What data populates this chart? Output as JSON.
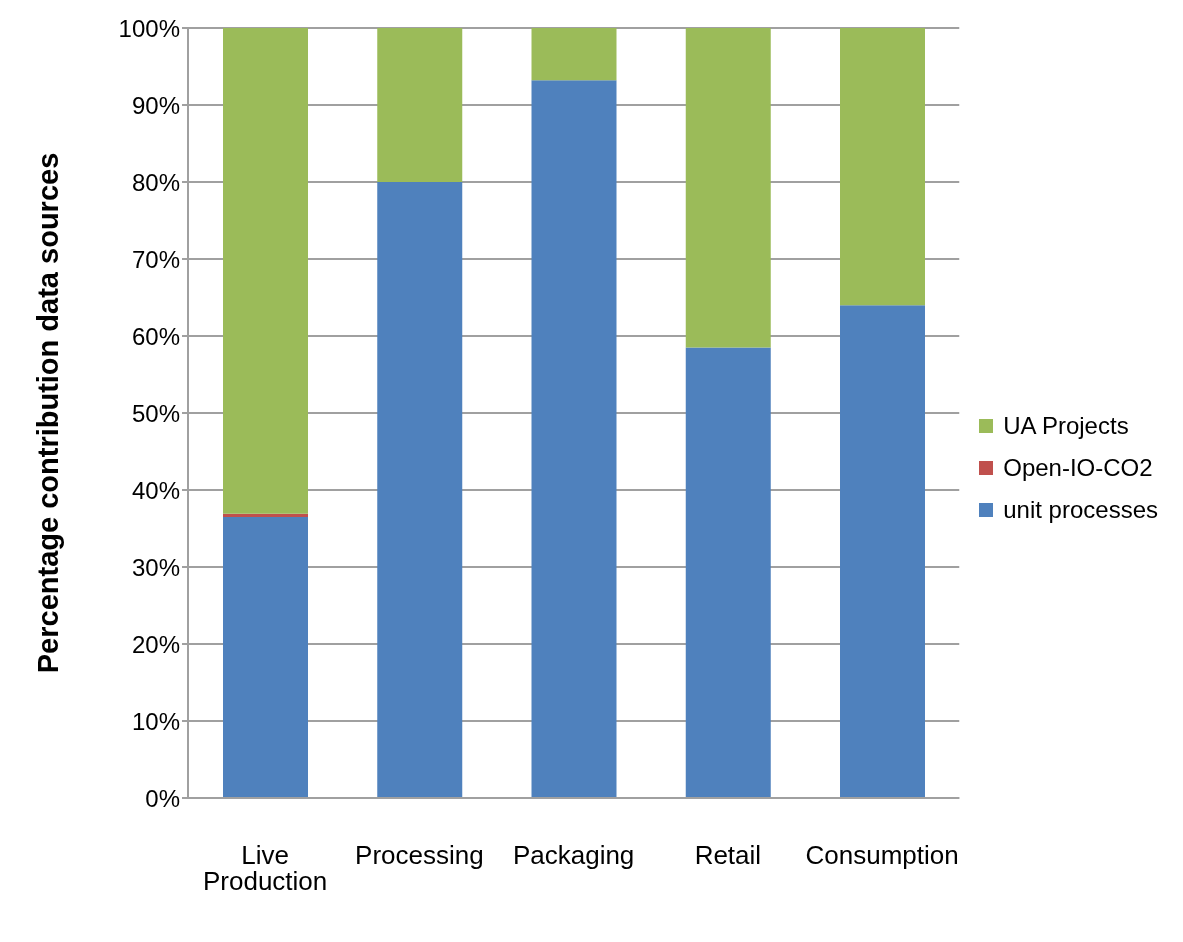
{
  "chart_data": {
    "type": "bar",
    "stacked": true,
    "ylabel": "Percentage contribution data sources",
    "categories": [
      "Live Production",
      "Processing",
      "Packaging",
      "Retail",
      "Consumption"
    ],
    "series": [
      {
        "name": "unit processes",
        "color": "#4f81bd",
        "values": [
          36.5,
          80,
          93.2,
          58.5,
          64
        ]
      },
      {
        "name": "Open-IO-CO2",
        "color": "#c0504d",
        "values": [
          0.4,
          0,
          0,
          0,
          0
        ]
      },
      {
        "name": "UA Projects",
        "color": "#9bbb59",
        "values": [
          63.1,
          20,
          6.8,
          41.5,
          36
        ]
      }
    ],
    "ylim": [
      0,
      100
    ],
    "yticks": [
      {
        "value": 0,
        "label": "0%"
      },
      {
        "value": 10,
        "label": "10%"
      },
      {
        "value": 20,
        "label": "20%"
      },
      {
        "value": 30,
        "label": "30%"
      },
      {
        "value": 40,
        "label": "40%"
      },
      {
        "value": 50,
        "label": "50%"
      },
      {
        "value": 60,
        "label": "60%"
      },
      {
        "value": 70,
        "label": "70%"
      },
      {
        "value": 80,
        "label": "80%"
      },
      {
        "value": 90,
        "label": "90%"
      },
      {
        "value": 100,
        "label": "100%"
      }
    ],
    "grid": "y",
    "legend": "right"
  }
}
